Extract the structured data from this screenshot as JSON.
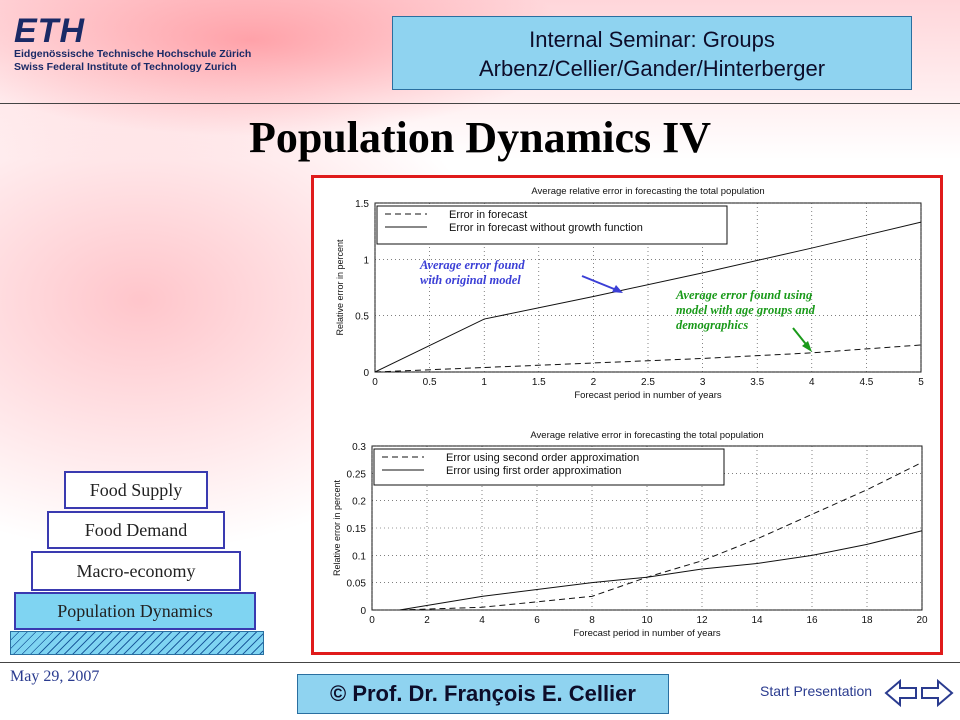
{
  "header": {
    "logo_mark": "ETH",
    "logo_line1": "Eidgenössische Technische Hochschule Zürich",
    "logo_line2": "Swiss Federal Institute of Technology Zurich",
    "seminar_line1": "Internal Seminar: Groups",
    "seminar_line2": "Arbenz/Cellier/Gander/Hinterberger"
  },
  "slide": {
    "title": "Population Dynamics IV"
  },
  "pyramid": {
    "levels": [
      "Food Supply",
      "Food Demand",
      "Macro-economy",
      "Population Dynamics"
    ]
  },
  "footer": {
    "date": "May 29, 2007",
    "copyright": "© Prof. Dr. François E. Cellier",
    "start_label": "Start Presentation"
  },
  "annotations": {
    "original": [
      "Average error found",
      "with original model"
    ],
    "age_groups": [
      "Average error found using",
      "model with age groups and",
      "demographics"
    ]
  },
  "colors": {
    "frame": "#e01b1b",
    "box": "#8fd3f0",
    "annot_blue": "#3b3fd6",
    "annot_green": "#1a9a1a"
  },
  "chart_data": [
    {
      "type": "line",
      "title": "Average relative error in forecasting the total population",
      "xlabel": "Forecast period in number of years",
      "ylabel": "Relative error in percent",
      "xlim": [
        0,
        5
      ],
      "ylim": [
        0,
        1.5
      ],
      "xticks": [
        "0",
        "0.5",
        "1",
        "1.5",
        "2",
        "2.5",
        "3",
        "3.5",
        "4",
        "4.5",
        "5"
      ],
      "yticks": [
        "0",
        "0.5",
        "1",
        "1.5"
      ],
      "grid": true,
      "legend": "top-left",
      "series": [
        {
          "name": "Error in forecast",
          "style": "dashed",
          "x": [
            0,
            1,
            2,
            3,
            4,
            5
          ],
          "y": [
            0,
            0.04,
            0.08,
            0.12,
            0.17,
            0.24
          ]
        },
        {
          "name": "Error in forecast without growth function",
          "style": "solid",
          "x": [
            0,
            1,
            2,
            3,
            4,
            5
          ],
          "y": [
            0,
            0.47,
            0.67,
            0.88,
            1.1,
            1.33
          ]
        }
      ]
    },
    {
      "type": "line",
      "title": "Average relative error in forecasting the total population",
      "xlabel": "Forecast period in number of years",
      "ylabel": "Relative error in percent",
      "xlim": [
        0,
        20
      ],
      "ylim": [
        0,
        0.3
      ],
      "xticks": [
        "0",
        "2",
        "4",
        "6",
        "8",
        "10",
        "12",
        "14",
        "16",
        "18",
        "20"
      ],
      "yticks": [
        "0",
        "0.05",
        "0.1",
        "0.15",
        "0.2",
        "0.25",
        "0.3"
      ],
      "grid": true,
      "legend": "top-left",
      "series": [
        {
          "name": "Error using second order approximation",
          "style": "dashed",
          "x": [
            1,
            4,
            8,
            10,
            12,
            14,
            16,
            18,
            20
          ],
          "y": [
            0,
            0.005,
            0.025,
            0.06,
            0.09,
            0.13,
            0.175,
            0.22,
            0.27
          ]
        },
        {
          "name": "Error using first order approximation",
          "style": "solid",
          "x": [
            1,
            4,
            8,
            10,
            12,
            14,
            16,
            18,
            20
          ],
          "y": [
            0,
            0.025,
            0.05,
            0.06,
            0.075,
            0.085,
            0.1,
            0.12,
            0.145
          ]
        }
      ]
    }
  ]
}
